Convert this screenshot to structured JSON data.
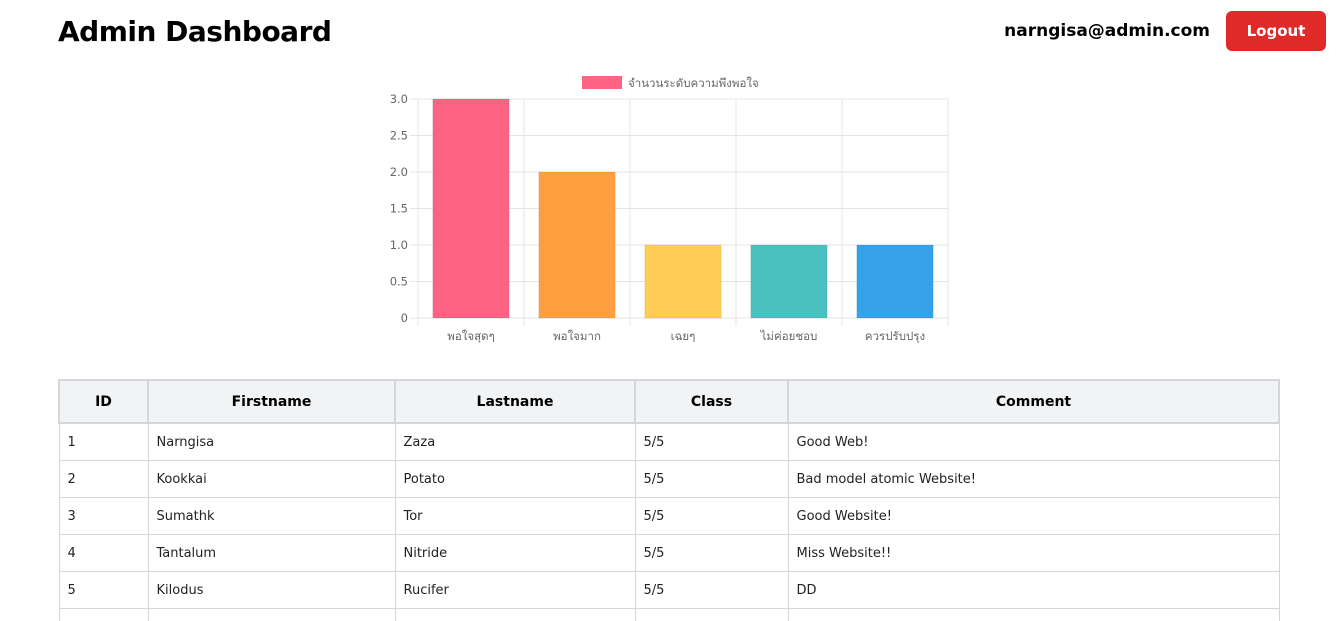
{
  "header": {
    "title": "Admin Dashboard",
    "user_email": "narngisa@admin.com",
    "logout_label": "Logout"
  },
  "chart_data": {
    "type": "bar",
    "categories": [
      "พอใจสุดๆ",
      "พอใจมาก",
      "เฉยๆ",
      "ไม่ค่อยชอบ",
      "ควรปรับปรุง"
    ],
    "series": [
      {
        "name": "จำนวนระดับความพึงพอใจ",
        "values": [
          3,
          2,
          1,
          1,
          1
        ]
      }
    ],
    "colors": [
      "#ff6384",
      "#ff9f40",
      "#ffcd56",
      "#4bc0c0",
      "#36a2eb"
    ],
    "legend_color": "#ff6384",
    "ylim": [
      0,
      3
    ],
    "yticks": [
      "3.0",
      "2.5",
      "2.0",
      "1.5",
      "1.0",
      "0.5",
      "0"
    ],
    "grid": true,
    "legend_position": "top"
  },
  "table": {
    "headers": [
      "ID",
      "Firstname",
      "Lastname",
      "Class",
      "Comment"
    ],
    "rows": [
      [
        "1",
        "Narngisa",
        "Zaza",
        "5/5",
        "Good Web!"
      ],
      [
        "2",
        "Kookkai",
        "Potato",
        "5/5",
        "Bad model atomic Website!"
      ],
      [
        "3",
        "Sumathk",
        "Tor",
        "5/5",
        "Good Website!"
      ],
      [
        "4",
        "Tantalum",
        "Nitride",
        "5/5",
        "Miss Website!!"
      ],
      [
        "5",
        "Kilodus",
        "Rucifer",
        "5/5",
        "DD"
      ],
      [
        "",
        "",
        "",
        "",
        ""
      ]
    ]
  }
}
